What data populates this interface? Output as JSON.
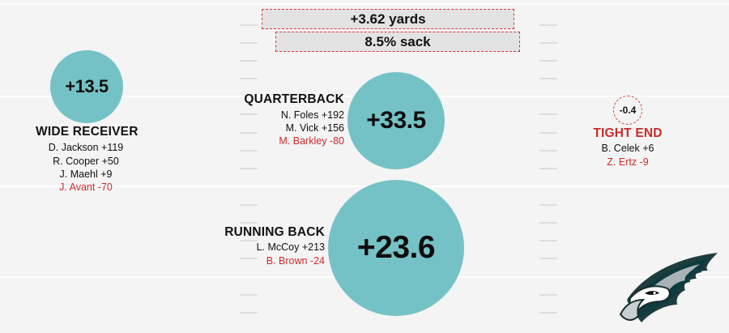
{
  "colors": {
    "positive": "#75c2c6",
    "negative": "#cc2a2a",
    "background": "#f4f4f4"
  },
  "team_stats": {
    "yards": "+3.62 yards",
    "sack": "8.5% sack"
  },
  "positions": {
    "wide_receiver": {
      "title": "WIDE RECEIVER",
      "value": "+13.5",
      "players": [
        {
          "text": "D. Jackson +119",
          "negative": false
        },
        {
          "text": "R. Cooper +50",
          "negative": false
        },
        {
          "text": "J. Maehl +9",
          "negative": false
        },
        {
          "text": "J. Avant -70",
          "negative": true
        }
      ]
    },
    "quarterback": {
      "title": "QUARTERBACK",
      "value": "+33.5",
      "players": [
        {
          "text": "N. Foles +192",
          "negative": false
        },
        {
          "text": "M. Vick +156",
          "negative": false
        },
        {
          "text": "M. Barkley -80",
          "negative": true
        }
      ]
    },
    "running_back": {
      "title": "RUNNING BACK",
      "value": "+23.6",
      "players": [
        {
          "text": "L. McCoy +213",
          "negative": false
        },
        {
          "text": "B. Brown -24",
          "negative": true
        }
      ]
    },
    "tight_end": {
      "title": "TIGHT END",
      "value": "-0.4",
      "players": [
        {
          "text": "B. Celek +6",
          "negative": false
        },
        {
          "text": "Z. Ertz -9",
          "negative": true
        }
      ]
    }
  },
  "logo": {
    "icon": "eagle-head-icon"
  }
}
